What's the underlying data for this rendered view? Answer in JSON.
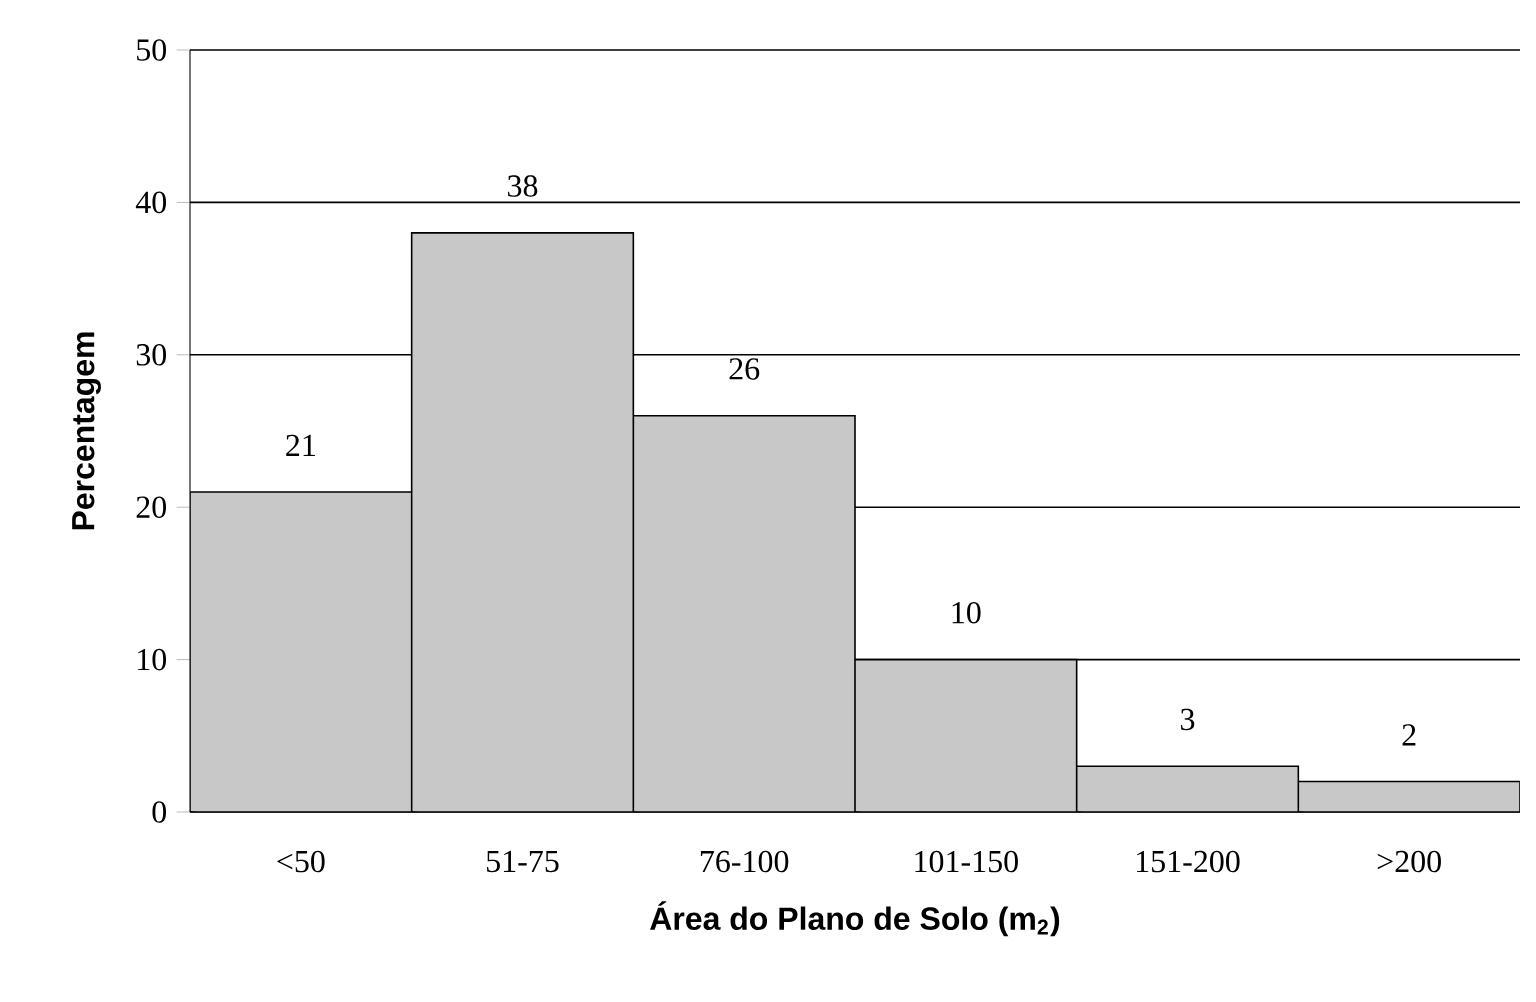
{
  "chart_data": {
    "type": "bar",
    "xlabel": "Área do Plano de Solo (m$_{2}$)",
    "ylabel": "Percentagem",
    "categories": [
      "<50",
      "51-75",
      "76-100",
      "101-150",
      "151-200",
      ">200"
    ],
    "values": [
      21,
      38,
      26,
      10,
      3,
      2
    ],
    "color": "#c8c8c8",
    "ylim": [
      0,
      50
    ],
    "yticks": [
      0,
      10,
      20,
      30,
      40,
      50
    ],
    "grid": "y",
    "data_labels": true
  }
}
